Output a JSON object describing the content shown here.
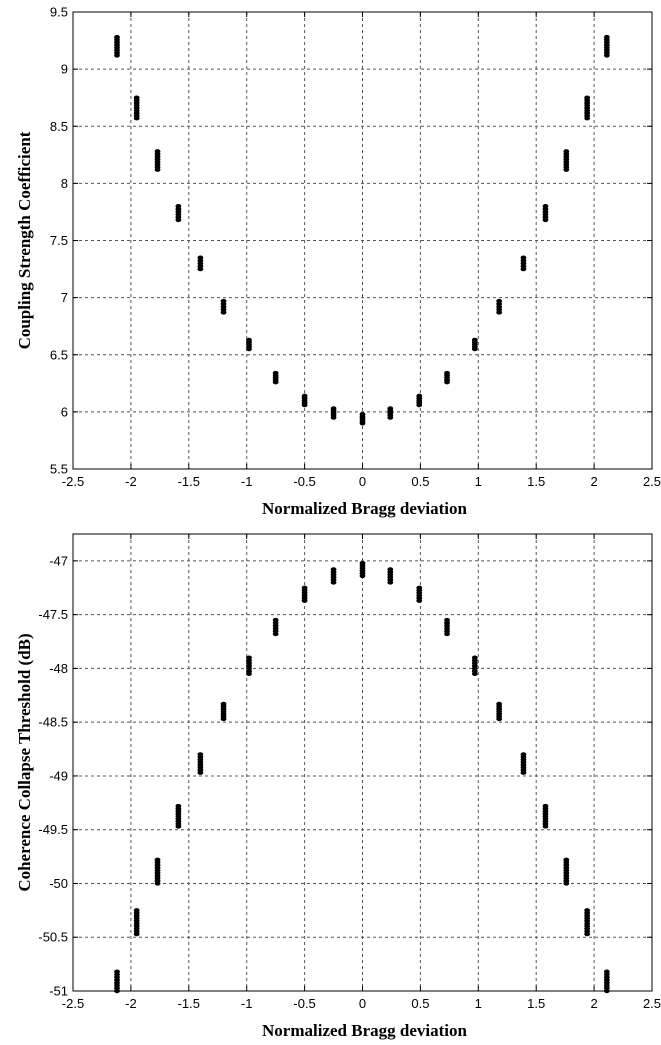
{
  "chart_data": [
    {
      "type": "scatter",
      "xlabel": "Normalized Bragg deviation",
      "ylabel": "Coupling Strength Coefficient",
      "xlim": [
        -2.5,
        2.5
      ],
      "ylim": [
        5.5,
        9.5
      ],
      "xticks": [
        -2.5,
        -2,
        -1.5,
        -1,
        -0.5,
        0,
        0.5,
        1,
        1.5,
        2,
        2.5
      ],
      "yticks": [
        5.5,
        6,
        6.5,
        7,
        7.5,
        8,
        8.5,
        9,
        9.5
      ],
      "grid": true,
      "marker_color": "#000000",
      "points_note": "each x value shows a short vertical cluster of dots between y_min and y_max",
      "clusters": [
        {
          "x": -2.12,
          "y_min": 9.12,
          "y_max": 9.28
        },
        {
          "x": -1.95,
          "y_min": 8.57,
          "y_max": 8.75
        },
        {
          "x": -1.77,
          "y_min": 8.12,
          "y_max": 8.28
        },
        {
          "x": -1.59,
          "y_min": 7.68,
          "y_max": 7.8
        },
        {
          "x": -1.4,
          "y_min": 7.25,
          "y_max": 7.35
        },
        {
          "x": -1.2,
          "y_min": 6.87,
          "y_max": 6.97
        },
        {
          "x": -0.98,
          "y_min": 6.55,
          "y_max": 6.63
        },
        {
          "x": -0.75,
          "y_min": 6.26,
          "y_max": 6.34
        },
        {
          "x": -0.5,
          "y_min": 6.06,
          "y_max": 6.14
        },
        {
          "x": -0.25,
          "y_min": 5.95,
          "y_max": 6.03
        },
        {
          "x": 0.0,
          "y_min": 5.9,
          "y_max": 5.98
        },
        {
          "x": 0.24,
          "y_min": 5.95,
          "y_max": 6.03
        },
        {
          "x": 0.49,
          "y_min": 6.06,
          "y_max": 6.14
        },
        {
          "x": 0.73,
          "y_min": 6.26,
          "y_max": 6.34
        },
        {
          "x": 0.97,
          "y_min": 6.55,
          "y_max": 6.63
        },
        {
          "x": 1.18,
          "y_min": 6.87,
          "y_max": 6.97
        },
        {
          "x": 1.39,
          "y_min": 7.25,
          "y_max": 7.35
        },
        {
          "x": 1.58,
          "y_min": 7.68,
          "y_max": 7.8
        },
        {
          "x": 1.76,
          "y_min": 8.12,
          "y_max": 8.28
        },
        {
          "x": 1.94,
          "y_min": 8.57,
          "y_max": 8.75
        },
        {
          "x": 2.11,
          "y_min": 9.12,
          "y_max": 9.28
        }
      ]
    },
    {
      "type": "scatter",
      "xlabel": "Normalized Bragg deviation",
      "ylabel": "Coherence Collapse Threshold (dB)",
      "xlim": [
        -2.5,
        2.5
      ],
      "ylim": [
        -51,
        -46.75
      ],
      "xticks": [
        -2.5,
        -2,
        -1.5,
        -1,
        -0.5,
        0,
        0.5,
        1,
        1.5,
        2,
        2.5
      ],
      "yticks": [
        -47,
        -47.5,
        -48,
        -48.5,
        -49,
        -49.5,
        -50,
        -50.5,
        -51
      ],
      "grid": true,
      "marker_color": "#000000",
      "points_note": "each x value shows a short vertical cluster of dots between y_min and y_max",
      "clusters": [
        {
          "x": -2.12,
          "y_min": -51.0,
          "y_max": -50.82
        },
        {
          "x": -1.95,
          "y_min": -50.47,
          "y_max": -50.25
        },
        {
          "x": -1.77,
          "y_min": -50.0,
          "y_max": -49.78
        },
        {
          "x": -1.59,
          "y_min": -49.47,
          "y_max": -49.28
        },
        {
          "x": -1.4,
          "y_min": -48.97,
          "y_max": -48.8
        },
        {
          "x": -1.2,
          "y_min": -48.47,
          "y_max": -48.33
        },
        {
          "x": -0.98,
          "y_min": -48.05,
          "y_max": -47.9
        },
        {
          "x": -0.75,
          "y_min": -47.68,
          "y_max": -47.55
        },
        {
          "x": -0.5,
          "y_min": -47.37,
          "y_max": -47.25
        },
        {
          "x": -0.25,
          "y_min": -47.2,
          "y_max": -47.08
        },
        {
          "x": 0.0,
          "y_min": -47.14,
          "y_max": -47.02
        },
        {
          "x": 0.24,
          "y_min": -47.2,
          "y_max": -47.08
        },
        {
          "x": 0.49,
          "y_min": -47.37,
          "y_max": -47.25
        },
        {
          "x": 0.73,
          "y_min": -47.68,
          "y_max": -47.55
        },
        {
          "x": 0.97,
          "y_min": -48.05,
          "y_max": -47.9
        },
        {
          "x": 1.18,
          "y_min": -48.47,
          "y_max": -48.33
        },
        {
          "x": 1.39,
          "y_min": -48.97,
          "y_max": -48.8
        },
        {
          "x": 1.58,
          "y_min": -49.47,
          "y_max": -49.28
        },
        {
          "x": 1.76,
          "y_min": -50.0,
          "y_max": -49.78
        },
        {
          "x": 1.94,
          "y_min": -50.47,
          "y_max": -50.25
        },
        {
          "x": 2.11,
          "y_min": -51.0,
          "y_max": -50.82
        }
      ]
    }
  ]
}
